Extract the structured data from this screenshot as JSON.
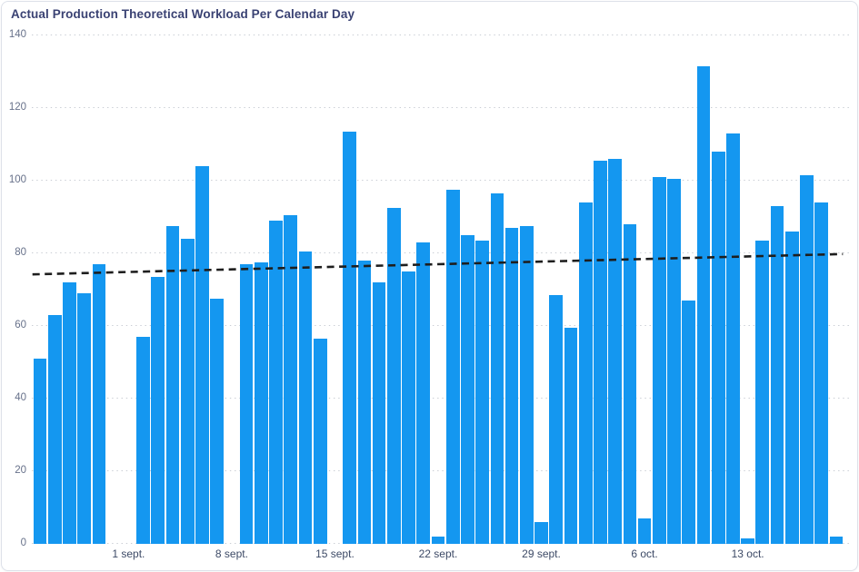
{
  "card": {
    "title": "Actual Production Theoretical Workload Per Calendar Day"
  },
  "chart_data": {
    "type": "bar",
    "title": "Actual Production Theoretical Workload Per Calendar Day",
    "xlabel": "",
    "ylabel": "",
    "ylim": [
      0,
      140
    ],
    "grid": "dotted-horizontal",
    "bar_color": "#1497f0",
    "y_ticks": [
      0,
      20,
      40,
      60,
      80,
      100,
      120,
      140
    ],
    "x_tick_labels": [
      {
        "slot": 6,
        "label": "1 sept."
      },
      {
        "slot": 13,
        "label": "8 sept."
      },
      {
        "slot": 20,
        "label": "15 sept."
      },
      {
        "slot": 27,
        "label": "22 sept."
      },
      {
        "slot": 34,
        "label": "29 sept."
      },
      {
        "slot": 41,
        "label": "6 oct."
      },
      {
        "slot": 48,
        "label": "13 oct."
      }
    ],
    "values": [
      51,
      63,
      72,
      69,
      77,
      null,
      null,
      57,
      73.5,
      87.5,
      84,
      104,
      67.5,
      null,
      77,
      77.5,
      89,
      90.5,
      80.5,
      56.5,
      null,
      113.5,
      78,
      72,
      92.5,
      75,
      83,
      2,
      97.5,
      85,
      83.5,
      96.5,
      87,
      87.5,
      6,
      68.5,
      59.5,
      94,
      105.5,
      106,
      88,
      7,
      101,
      100.5,
      67,
      131.5,
      108,
      113,
      1.5,
      83.5,
      93,
      86,
      101.5,
      94,
      2
    ],
    "trendline": {
      "start_value": 74.2,
      "end_value": 79.8,
      "color": "#1e1e1e",
      "style": "dashed"
    }
  }
}
